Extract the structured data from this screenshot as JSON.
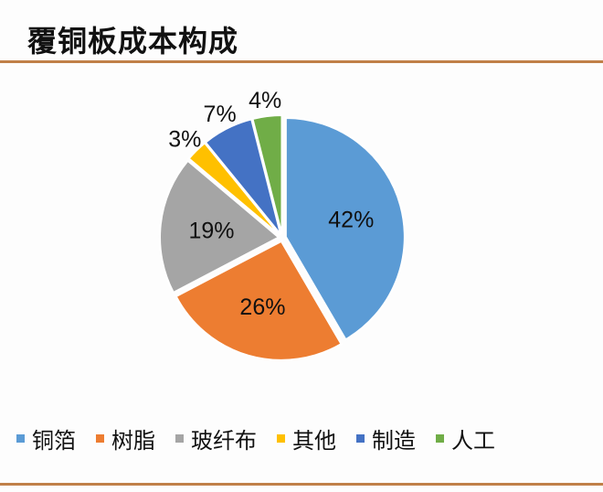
{
  "title": "覆铜板成本构成",
  "chart_data": {
    "type": "pie",
    "title": "覆铜板成本构成",
    "categories": [
      "铜箔",
      "树脂",
      "玻纤布",
      "其他",
      "制造",
      "人工"
    ],
    "values": [
      42,
      26,
      19,
      3,
      7,
      4
    ],
    "labels": [
      "42%",
      "26%",
      "19%",
      "3%",
      "7%",
      "4%"
    ],
    "colors": [
      "#5b9bd5",
      "#ed7d31",
      "#a5a5a5",
      "#ffc000",
      "#4472c4",
      "#70ad47"
    ],
    "legend_position": "bottom",
    "exploded": true
  },
  "legend": [
    {
      "label": "铜箔",
      "color": "#5b9bd5"
    },
    {
      "label": "树脂",
      "color": "#ed7d31"
    },
    {
      "label": "玻纤布",
      "color": "#a5a5a5"
    },
    {
      "label": "其他",
      "color": "#ffc000"
    },
    {
      "label": "制造",
      "color": "#4472c4"
    },
    {
      "label": "人工",
      "color": "#70ad47"
    }
  ]
}
